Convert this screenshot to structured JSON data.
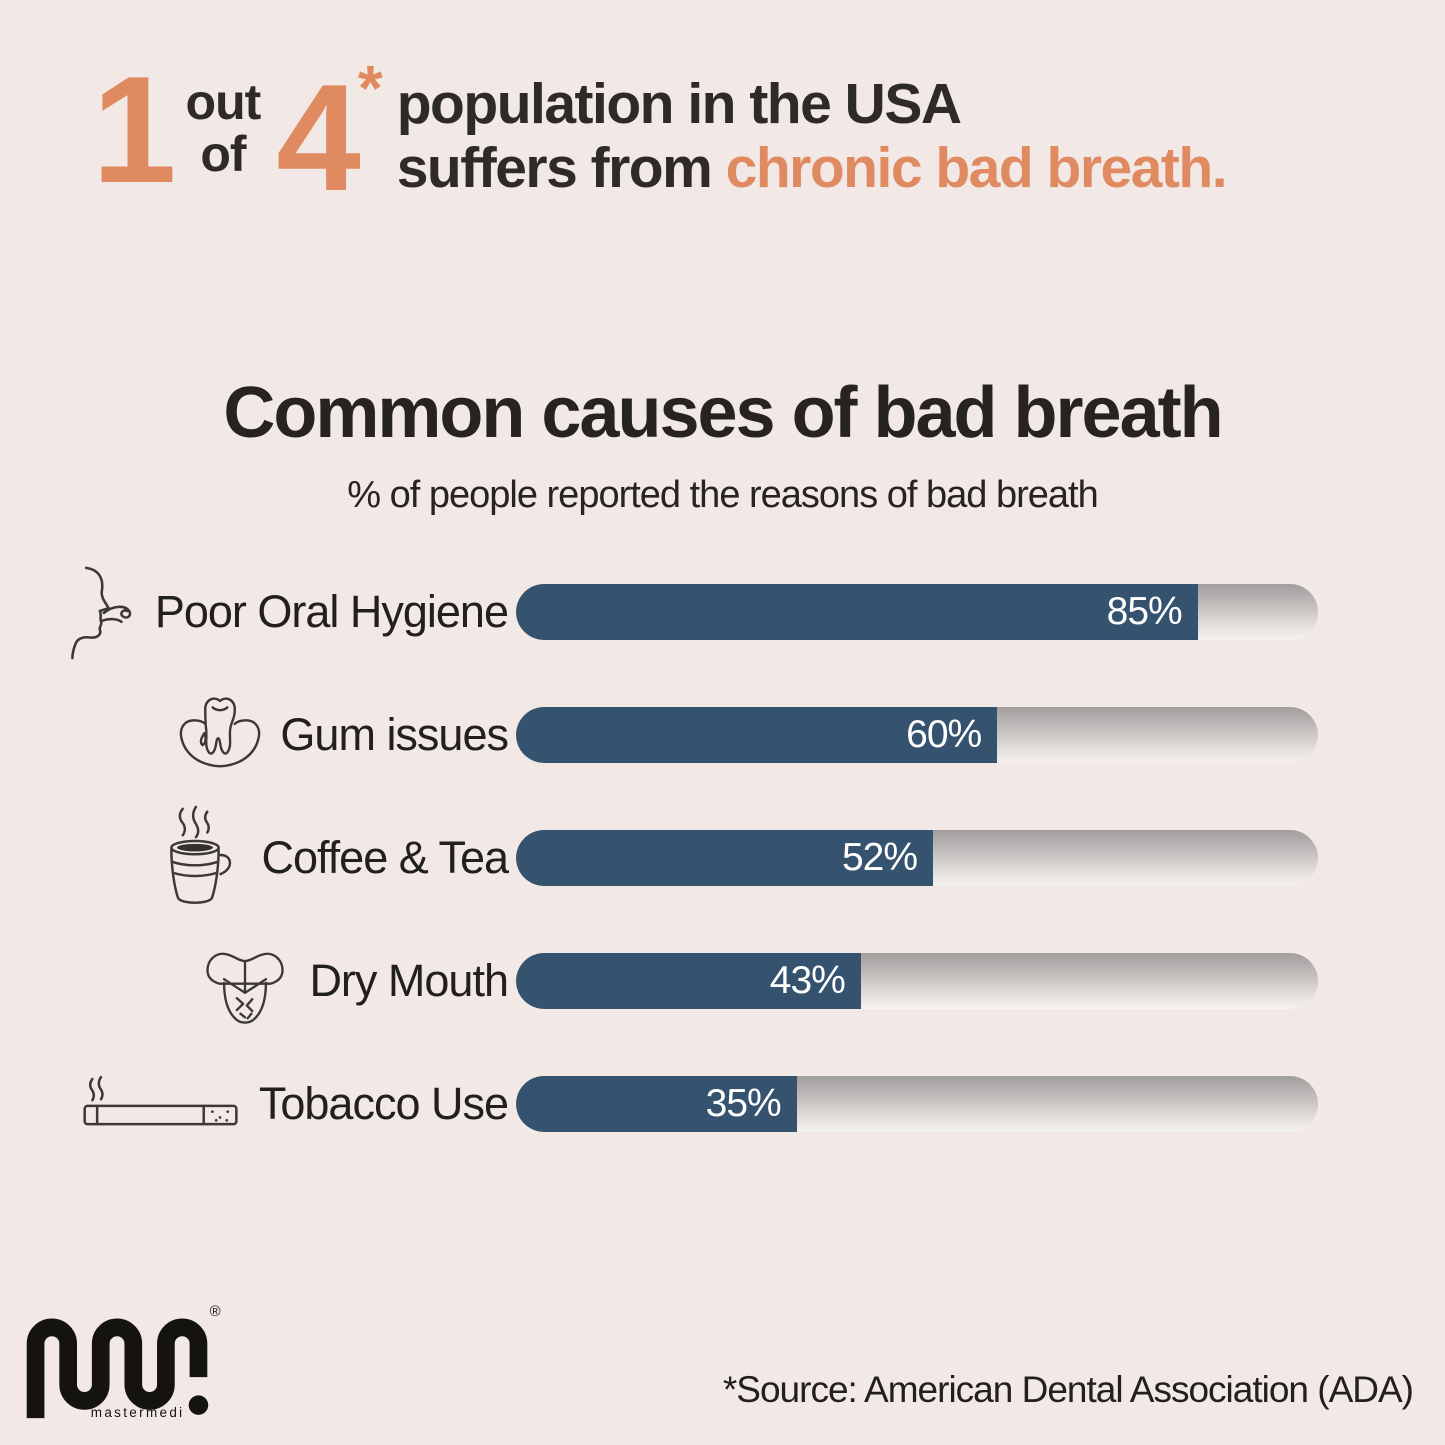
{
  "header": {
    "numerator": "1",
    "out": "out",
    "of": "of",
    "denominator": "4",
    "asterisk": "*",
    "line1": "population in the USA",
    "line2_prefix": "suffers from ",
    "line2_highlight": "chronic bad breath."
  },
  "chart_data": {
    "type": "bar",
    "orientation": "horizontal",
    "title": "Common causes of bad breath",
    "subtitle": "% of people reported the reasons of bad breath",
    "categories": [
      "Poor Oral Hygiene",
      "Gum issues",
      "Coffee & Tea",
      "Dry Mouth",
      "Tobacco Use"
    ],
    "values": [
      85,
      60,
      52,
      43,
      35
    ],
    "value_labels": [
      "85%",
      "60%",
      "52%",
      "43%",
      "35%"
    ],
    "xlim": [
      0,
      100
    ],
    "grid": false,
    "legend": "none",
    "bar_color": "#35536e",
    "track_gradient": [
      "#a29e9d",
      "#f6f2f0"
    ],
    "value_label_color": "#ffffff",
    "icons": [
      "bad-breath-face",
      "tooth-with-gum",
      "coffee-cup",
      "dry-tongue",
      "cigarette"
    ]
  },
  "footer": {
    "source": "*Source: American Dental Association (ADA)",
    "logo_text": "mastermedi",
    "registered": "®"
  },
  "colors": {
    "background": "#f2e9e6",
    "text": "#2d2a28",
    "accent_orange": "#e08a62",
    "bar_blue": "#35536e"
  }
}
